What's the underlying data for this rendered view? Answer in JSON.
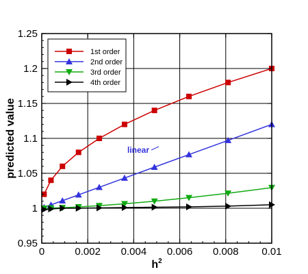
{
  "chart_data": {
    "type": "line",
    "xlabel": "h",
    "xlabel_superscript": "2",
    "ylabel": "predicted value",
    "xlim": [
      0,
      0.01
    ],
    "ylim": [
      0.95,
      1.25
    ],
    "xticks": [
      "0",
      "0.002",
      "0.004",
      "0.006",
      "0.008",
      "0.01"
    ],
    "yticks": [
      "0.95",
      "1",
      "1.05",
      "1.1",
      "1.15",
      "1.2",
      "1.25"
    ],
    "xtick_values": [
      0,
      0.002,
      0.004,
      0.006,
      0.008,
      0.01
    ],
    "ytick_values": [
      0.95,
      1.0,
      1.05,
      1.1,
      1.15,
      1.2,
      1.25
    ],
    "grid": true,
    "legend_position": "top-left",
    "series": [
      {
        "name": "1st order",
        "color": "#cc0000",
        "marker": "square",
        "x": [
          0.0001,
          0.0004,
          0.0009,
          0.0016,
          0.0025,
          0.0036,
          0.0049,
          0.0064,
          0.0081,
          0.01
        ],
        "values": [
          1.02,
          1.04,
          1.06,
          1.08,
          1.1,
          1.12,
          1.14,
          1.16,
          1.18,
          1.2
        ]
      },
      {
        "name": "2nd order",
        "color": "#3333dd",
        "marker": "triangle-up",
        "x": [
          0.0001,
          0.0004,
          0.0009,
          0.0016,
          0.0025,
          0.0036,
          0.0049,
          0.0064,
          0.0081,
          0.01
        ],
        "values": [
          1.0012,
          1.0048,
          1.0108,
          1.0192,
          1.03,
          1.0432,
          1.0588,
          1.0768,
          1.0972,
          1.12
        ]
      },
      {
        "name": "3rd order",
        "color": "#11aa11",
        "marker": "triangle-down",
        "x": [
          0.0001,
          0.0004,
          0.0009,
          0.0016,
          0.0025,
          0.0036,
          0.0049,
          0.0064,
          0.0081,
          0.01
        ],
        "values": [
          1.0,
          1.0002,
          1.0008,
          1.0019,
          1.0037,
          1.0064,
          1.0101,
          1.0151,
          1.0215,
          1.0295
        ]
      },
      {
        "name": "4th order",
        "color": "#000000",
        "marker": "triangle-right",
        "x": [
          0.0001,
          0.0004,
          0.0009,
          0.0016,
          0.0025,
          0.0036,
          0.0049,
          0.0064,
          0.0081,
          0.01
        ],
        "values": [
          0.998,
          0.999,
          1.0,
          1.0,
          1.0005,
          1.001,
          1.0015,
          1.002,
          1.003,
          1.005
        ]
      }
    ],
    "annotations": [
      {
        "text": "linear",
        "color": "#3333dd",
        "x": 0.0045,
        "y": 1.076,
        "pointer_to": [
          0.0051,
          1.0725
        ]
      }
    ]
  }
}
